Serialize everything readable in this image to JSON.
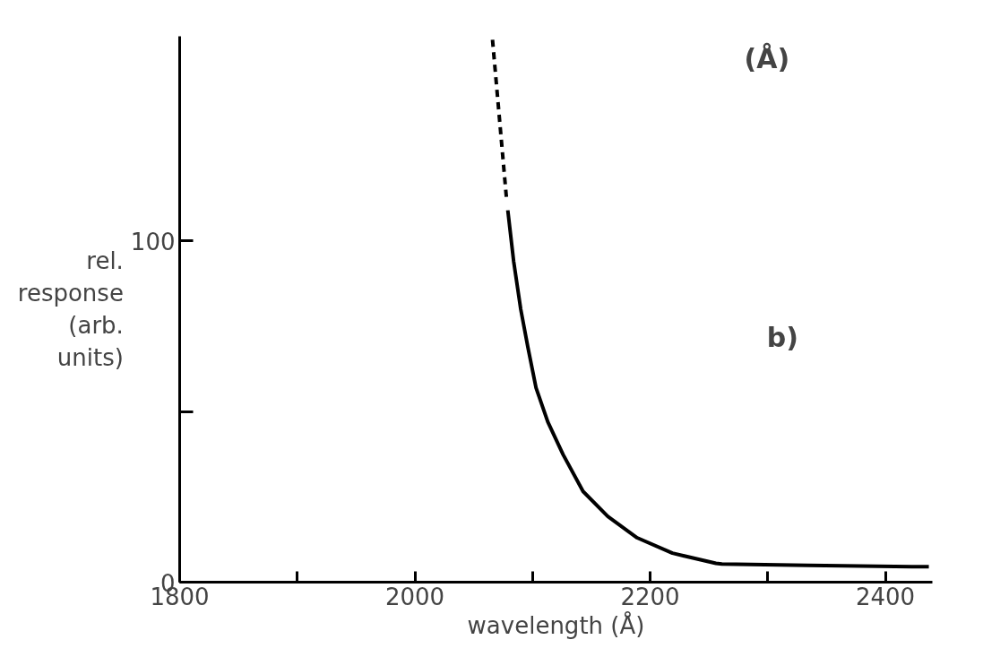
{
  "chart_data": {
    "type": "line",
    "xlabel": "wavelength (Å)",
    "ylabel": "rel. response (arb. units)",
    "annotations": [
      "b)",
      "(Å)"
    ],
    "xlim": [
      1800,
      2440
    ],
    "ylim": [
      0,
      160
    ],
    "xticks": [
      1800,
      {
        "value": 1900,
        "label": null
      },
      2000,
      {
        "value": 2100,
        "label": null
      },
      2200,
      {
        "value": 2300,
        "label": null
      },
      2400
    ],
    "yticks": [
      0,
      {
        "value": 50,
        "label": null
      },
      100
    ],
    "grid": false,
    "marker": "none",
    "series": [
      {
        "color": "#000000",
        "line_style": "dashed",
        "x": [
          2066,
          2078
        ],
        "values": [
          159,
          112
        ]
      },
      {
        "color": "#000000",
        "line_style": "solid",
        "x": [
          2079,
          2084,
          2090,
          2096,
          2103,
          2113,
          2126,
          2143,
          2164,
          2189,
          2219,
          2256,
          2261,
          2334,
          2437
        ],
        "values": [
          109,
          94,
          80,
          69,
          57,
          47,
          37.4,
          26.6,
          19.3,
          13,
          8.5,
          5.5,
          5.3,
          4.9,
          4.5
        ]
      }
    ]
  }
}
